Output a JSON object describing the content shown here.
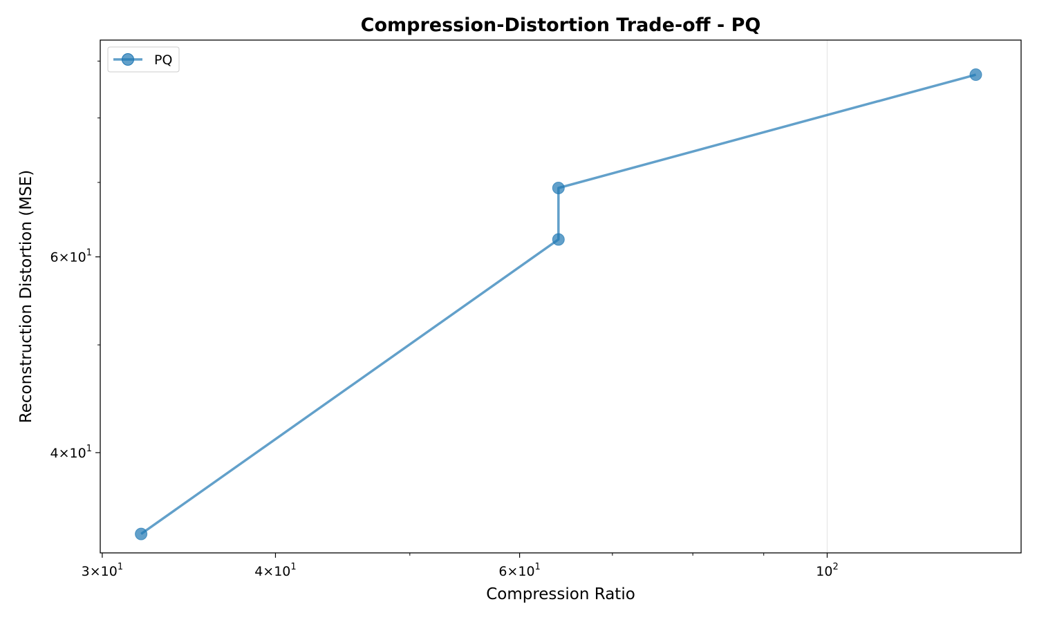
{
  "chart_data": {
    "type": "line",
    "title": "Compression-Distortion Trade-off - PQ",
    "xlabel": "Compression Ratio",
    "ylabel": "Reconstruction Distortion (MSE)",
    "xscale": "log",
    "yscale": "log",
    "xlim": [
      29.9,
      138
    ],
    "ylim": [
      32.5,
      94
    ],
    "grid": "x-major",
    "legend_position": "top-left",
    "series": [
      {
        "name": "PQ",
        "color": "#1f77b4",
        "marker": "circle",
        "x": [
          32,
          64,
          64,
          128
        ],
        "y": [
          33.8,
          62.2,
          69.2,
          87.5
        ]
      }
    ],
    "x_major_ticks": [
      {
        "value": 30,
        "base": "3",
        "exp": "1"
      },
      {
        "value": 40,
        "base": "4",
        "exp": "1"
      },
      {
        "value": 60,
        "base": "6",
        "exp": "1"
      },
      {
        "value": 100,
        "base": "",
        "exp": "2"
      }
    ],
    "x_minor_ticks": [
      50,
      70,
      80,
      90
    ],
    "y_major_ticks": [
      {
        "value": 40,
        "base": "4",
        "exp": "1"
      },
      {
        "value": 60,
        "base": "6",
        "exp": "1"
      }
    ],
    "y_minor_ticks": [
      50,
      70,
      80,
      90
    ]
  }
}
